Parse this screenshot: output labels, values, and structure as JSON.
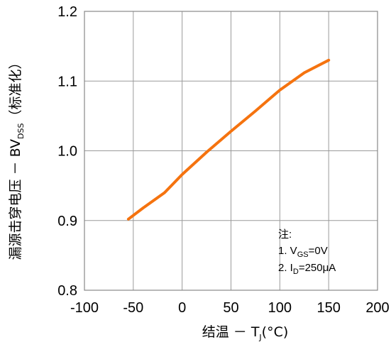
{
  "chart_data": {
    "type": "line",
    "title": "",
    "xlabel": {
      "main": "结温 － T",
      "sub": "J",
      "unit": "(°C)"
    },
    "ylabel": {
      "main": "漏源击穿电压 － BV",
      "sub": "DSS",
      "suffix": "（标准化）"
    },
    "xlim": [
      -100,
      200
    ],
    "ylim": [
      0.8,
      1.2
    ],
    "x_ticks": [
      -100,
      -50,
      0,
      50,
      100,
      150,
      200
    ],
    "x_tick_labels": [
      "-100",
      "-50",
      "0",
      "50",
      "100",
      "150",
      "200"
    ],
    "y_ticks": [
      0.8,
      0.9,
      1.0,
      1.1,
      1.2
    ],
    "y_tick_labels": [
      "0.8",
      "0.9",
      "1.0",
      "1.1",
      "1.2"
    ],
    "grid": true,
    "series": [
      {
        "color": "#f5730f",
        "x": [
          -55,
          -40,
          -18,
          0,
          25,
          50,
          75,
          100,
          125,
          150
        ],
        "y": [
          0.902,
          0.918,
          0.94,
          0.966,
          0.998,
          1.028,
          1.057,
          1.087,
          1.112,
          1.13
        ]
      }
    ],
    "annotation": {
      "title": "注:",
      "lines": [
        {
          "pre": "1. V",
          "sub": "GS",
          "post": "=0V"
        },
        {
          "pre": "2. I",
          "sub": "D",
          "post": "=250μA"
        }
      ]
    }
  }
}
